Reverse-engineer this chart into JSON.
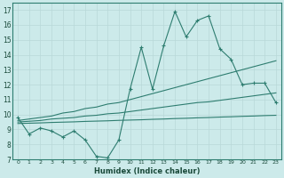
{
  "xlabel": "Humidex (Indice chaleur)",
  "background_color": "#cceaea",
  "line_color": "#2e7d70",
  "grid_color": "#b8d8d8",
  "x_values": [
    0,
    1,
    2,
    3,
    4,
    5,
    6,
    7,
    8,
    9,
    10,
    11,
    12,
    13,
    14,
    15,
    16,
    17,
    18,
    19,
    20,
    21,
    22,
    23
  ],
  "main_line": [
    9.8,
    8.7,
    9.1,
    8.9,
    8.5,
    8.9,
    8.3,
    7.2,
    7.1,
    8.3,
    11.7,
    14.5,
    11.7,
    14.6,
    16.9,
    15.2,
    16.3,
    16.6,
    14.4,
    13.7,
    12.0,
    12.1,
    12.1,
    10.8
  ],
  "upper_line": [
    9.6,
    9.7,
    9.8,
    9.9,
    10.1,
    10.2,
    10.4,
    10.5,
    10.7,
    10.8,
    11.0,
    11.2,
    11.4,
    11.6,
    11.8,
    12.0,
    12.2,
    12.4,
    12.6,
    12.8,
    13.0,
    13.2,
    13.4,
    13.6
  ],
  "middle_line": [
    9.5,
    9.55,
    9.6,
    9.7,
    9.75,
    9.8,
    9.9,
    9.95,
    10.05,
    10.1,
    10.2,
    10.3,
    10.4,
    10.5,
    10.6,
    10.7,
    10.8,
    10.85,
    10.95,
    11.05,
    11.15,
    11.25,
    11.35,
    11.45
  ],
  "lower_line": [
    9.4,
    9.42,
    9.44,
    9.47,
    9.49,
    9.51,
    9.54,
    9.56,
    9.58,
    9.61,
    9.63,
    9.65,
    9.68,
    9.7,
    9.73,
    9.75,
    9.78,
    9.8,
    9.83,
    9.85,
    9.88,
    9.9,
    9.93,
    9.95
  ],
  "ylim": [
    7,
    17.5
  ],
  "xlim": [
    -0.5,
    23.5
  ],
  "yticks": [
    7,
    8,
    9,
    10,
    11,
    12,
    13,
    14,
    15,
    16,
    17
  ],
  "xticks": [
    0,
    1,
    2,
    3,
    4,
    5,
    6,
    7,
    8,
    9,
    10,
    11,
    12,
    13,
    14,
    15,
    16,
    17,
    18,
    19,
    20,
    21,
    22,
    23
  ]
}
